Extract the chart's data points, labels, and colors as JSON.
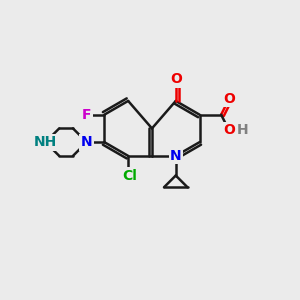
{
  "bg_color": "#ebebeb",
  "line_color": "#1a1a1a",
  "bond_width": 1.8,
  "atoms": {
    "F": {
      "color": "#cc00cc",
      "size": 10
    },
    "N": {
      "color": "#0000ee",
      "size": 10
    },
    "NH": {
      "color": "#008080",
      "size": 10
    },
    "O": {
      "color": "#ee0000",
      "size": 10
    },
    "Cl": {
      "color": "#00aa00",
      "size": 10
    },
    "H": {
      "color": "#808080",
      "size": 10
    }
  },
  "figsize": [
    3.0,
    3.0
  ],
  "dpi": 100
}
